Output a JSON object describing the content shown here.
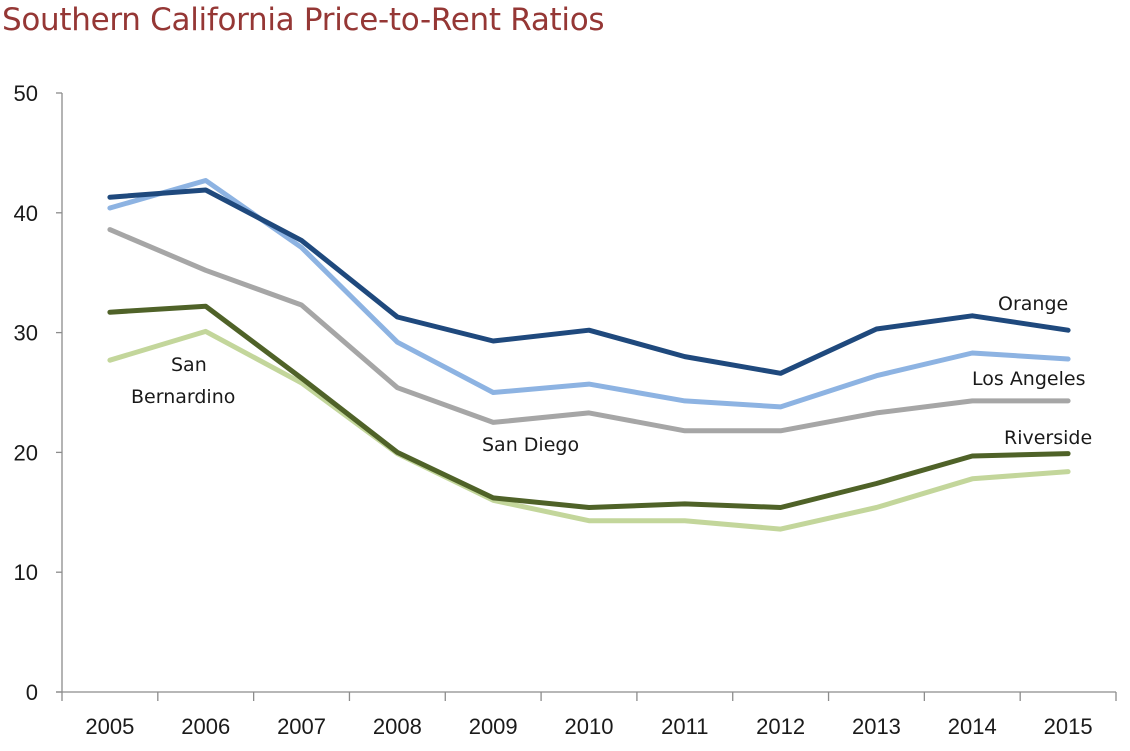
{
  "chart_data": {
    "type": "line",
    "title": "Southern California Price-to-Rent Ratios",
    "xlabel": "",
    "ylabel": "",
    "categories": [
      "2005",
      "2006",
      "2007",
      "2008",
      "2009",
      "2010",
      "2011",
      "2012",
      "2013",
      "2014",
      "2015"
    ],
    "ylim": [
      0,
      50
    ],
    "yticks": [
      0,
      10,
      20,
      30,
      40,
      50
    ],
    "ytick_labels": [
      "0",
      "10",
      "20",
      "30",
      "40",
      "50"
    ],
    "grid": false,
    "legend": "none (inline labels)",
    "series": [
      {
        "name": "Orange",
        "color": "#1f497d",
        "values": [
          41.3,
          41.9,
          37.7,
          31.3,
          29.3,
          30.2,
          28.0,
          26.6,
          30.3,
          31.4,
          30.2
        ]
      },
      {
        "name": "Los Angeles",
        "color": "#8db3e2",
        "values": [
          40.4,
          42.7,
          37.1,
          29.2,
          25.0,
          25.7,
          24.3,
          23.8,
          26.4,
          28.3,
          27.8
        ]
      },
      {
        "name": "San Diego",
        "color": "#a6a6a6",
        "values": [
          38.6,
          35.2,
          32.3,
          25.4,
          22.5,
          23.3,
          21.8,
          21.8,
          23.3,
          24.3,
          24.3
        ]
      },
      {
        "name": "Riverside",
        "color": "#4f6228",
        "values": [
          31.7,
          32.2,
          26.2,
          20.0,
          16.2,
          15.4,
          15.7,
          15.4,
          17.4,
          19.7,
          19.9
        ]
      },
      {
        "name": "San Bernardino",
        "color": "#c3d69b",
        "values": [
          27.7,
          30.1,
          25.8,
          19.9,
          16.0,
          14.3,
          14.3,
          13.6,
          15.4,
          17.8,
          18.4
        ]
      }
    ],
    "annotations": [
      {
        "text": "Orange",
        "series": "Orange"
      },
      {
        "text": "Los Angeles",
        "series": "Los Angeles"
      },
      {
        "text": "San Diego",
        "series": "San Diego"
      },
      {
        "text": "Riverside",
        "series": "Riverside"
      },
      {
        "text": "San",
        "series": "San Bernardino"
      },
      {
        "text": "Bernardino",
        "series": "San Bernardino"
      }
    ]
  }
}
